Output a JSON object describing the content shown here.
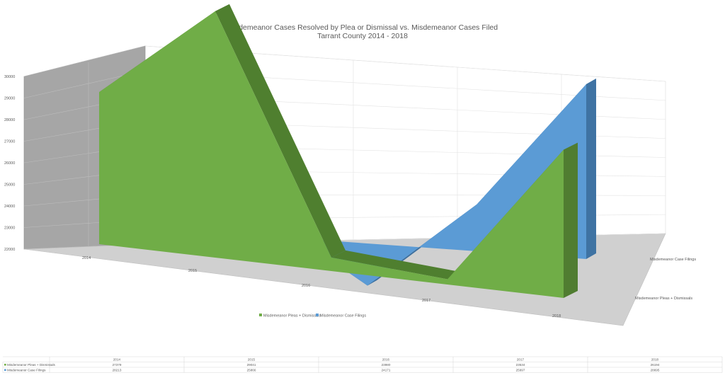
{
  "chart_data": {
    "type": "area",
    "title": "Misdemeanor Cases Resolved by Plea or Dismissal vs. Misdemeanor Cases Filed",
    "subtitle": "Tarrant County 2014 - 2018",
    "categories": [
      "2014",
      "2015",
      "2016",
      "2017",
      "2018"
    ],
    "series": [
      {
        "name": "Misdemeanor Pleas + Dismissals",
        "values": [
          27379,
          29041,
          23980,
          23534,
          26194
        ],
        "color": "#70ad47"
      },
      {
        "name": "Misdemeanor Case Filings",
        "values": [
          28213,
          25866,
          24171,
          25997,
          28695
        ],
        "color": "#5b9bd5"
      }
    ],
    "yticks": [
      22000,
      23000,
      24000,
      25000,
      26000,
      27000,
      28000,
      29000,
      30000
    ],
    "ylim": [
      22000,
      30000
    ],
    "depth_labels": [
      "Misdemeanor Pleas + Dismissals",
      "Misdemeanor Case Filings"
    ],
    "grid": true,
    "legend": "bottom",
    "data_table": true
  }
}
